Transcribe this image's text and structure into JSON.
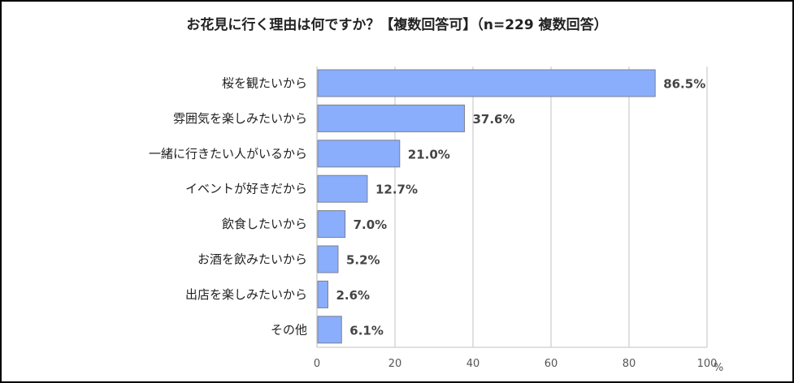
{
  "chart_data": {
    "type": "bar",
    "orientation": "horizontal",
    "title": "お花見に行く理由は何ですか？【複数回答可】（n=229 複数回答）",
    "categories": [
      "桜を観たいから",
      "雰囲気を楽しみたいから",
      "一緒に行きたい人がいるから",
      "イベントが好きだから",
      "飲食したいから",
      "お酒を飲みたいから",
      "出店を楽しみたいから",
      "その他"
    ],
    "values": [
      86.5,
      37.6,
      21.0,
      12.7,
      7.0,
      5.2,
      2.6,
      6.1
    ],
    "value_labels": [
      "86.5%",
      "37.6%",
      "21.0%",
      "12.7%",
      "7.0%",
      "5.2%",
      "2.6%",
      "6.1%"
    ],
    "xlim": [
      0,
      100
    ],
    "xticks": [
      "0",
      "20",
      "40",
      "60",
      "80",
      "100"
    ],
    "x_unit": "%",
    "grid": true,
    "bar_color": "#8aaefc",
    "bar_edge": "#7a7f8f"
  }
}
